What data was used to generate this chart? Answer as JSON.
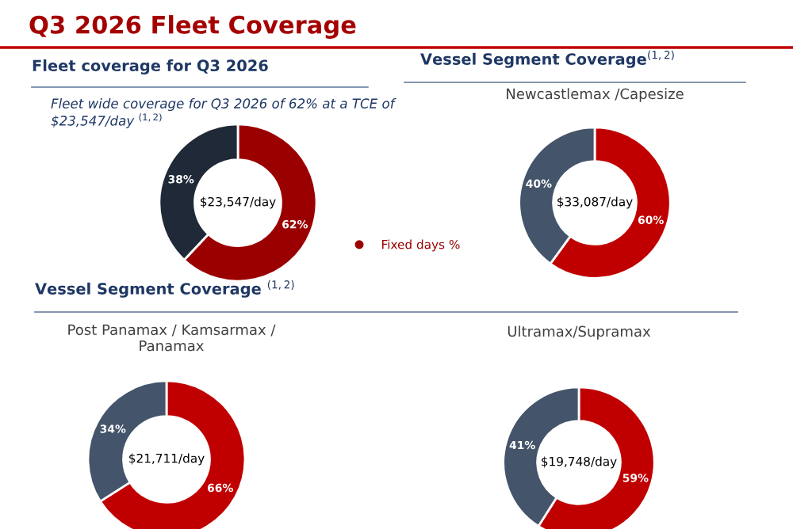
{
  "chart_data": [
    {
      "type": "donut",
      "title": "Fleet coverage for Q3 2026",
      "subtitle": "Fleet wide coverage for Q3 2026 of 62% at a TCE of $23,547/day $^{(1,2)}$",
      "annotations": [
        "Q3 2026 Fleet Coverage",
        "$23,547/day"
      ],
      "categories": [
        "Fixed days %",
        null
      ],
      "values": [
        62,
        38
      ],
      "colors": [
        "#9b0000",
        "#1f2937"
      ],
      "value_labels": [
        "62%",
        "38%"
      ],
      "legend": "right"
    },
    {
      "type": "donut",
      "title": "Vessel Segment Coverage$^{(1,2)}$",
      "subtitle": "Newcastlemax /Capesize",
      "annotations": [
        "$33,087/day"
      ],
      "categories": [
        null,
        null
      ],
      "values": [
        60,
        40
      ],
      "colors": [
        "#c00000",
        "#44546a"
      ],
      "value_labels": [
        "60%",
        "40%"
      ]
    },
    {
      "type": "donut",
      "title": "Vessel Segment Coverage $^{(1,2)}$",
      "subtitle": "Post Panamax / Kamsarmax / Panamax",
      "annotations": [
        "$21,711/day"
      ],
      "categories": [
        null,
        null
      ],
      "values": [
        66,
        34
      ],
      "colors": [
        "#c00000",
        "#44546a"
      ],
      "value_labels": [
        "66%",
        "34%"
      ]
    },
    {
      "type": "donut",
      "subtitle": "Ultramax/Supramax",
      "annotations": [
        "$19,748/day"
      ],
      "categories": [
        null,
        null
      ],
      "values": [
        59,
        41
      ],
      "colors": [
        "#c00000",
        "#44546a"
      ],
      "value_labels": [
        "59%",
        "41%"
      ]
    }
  ]
}
